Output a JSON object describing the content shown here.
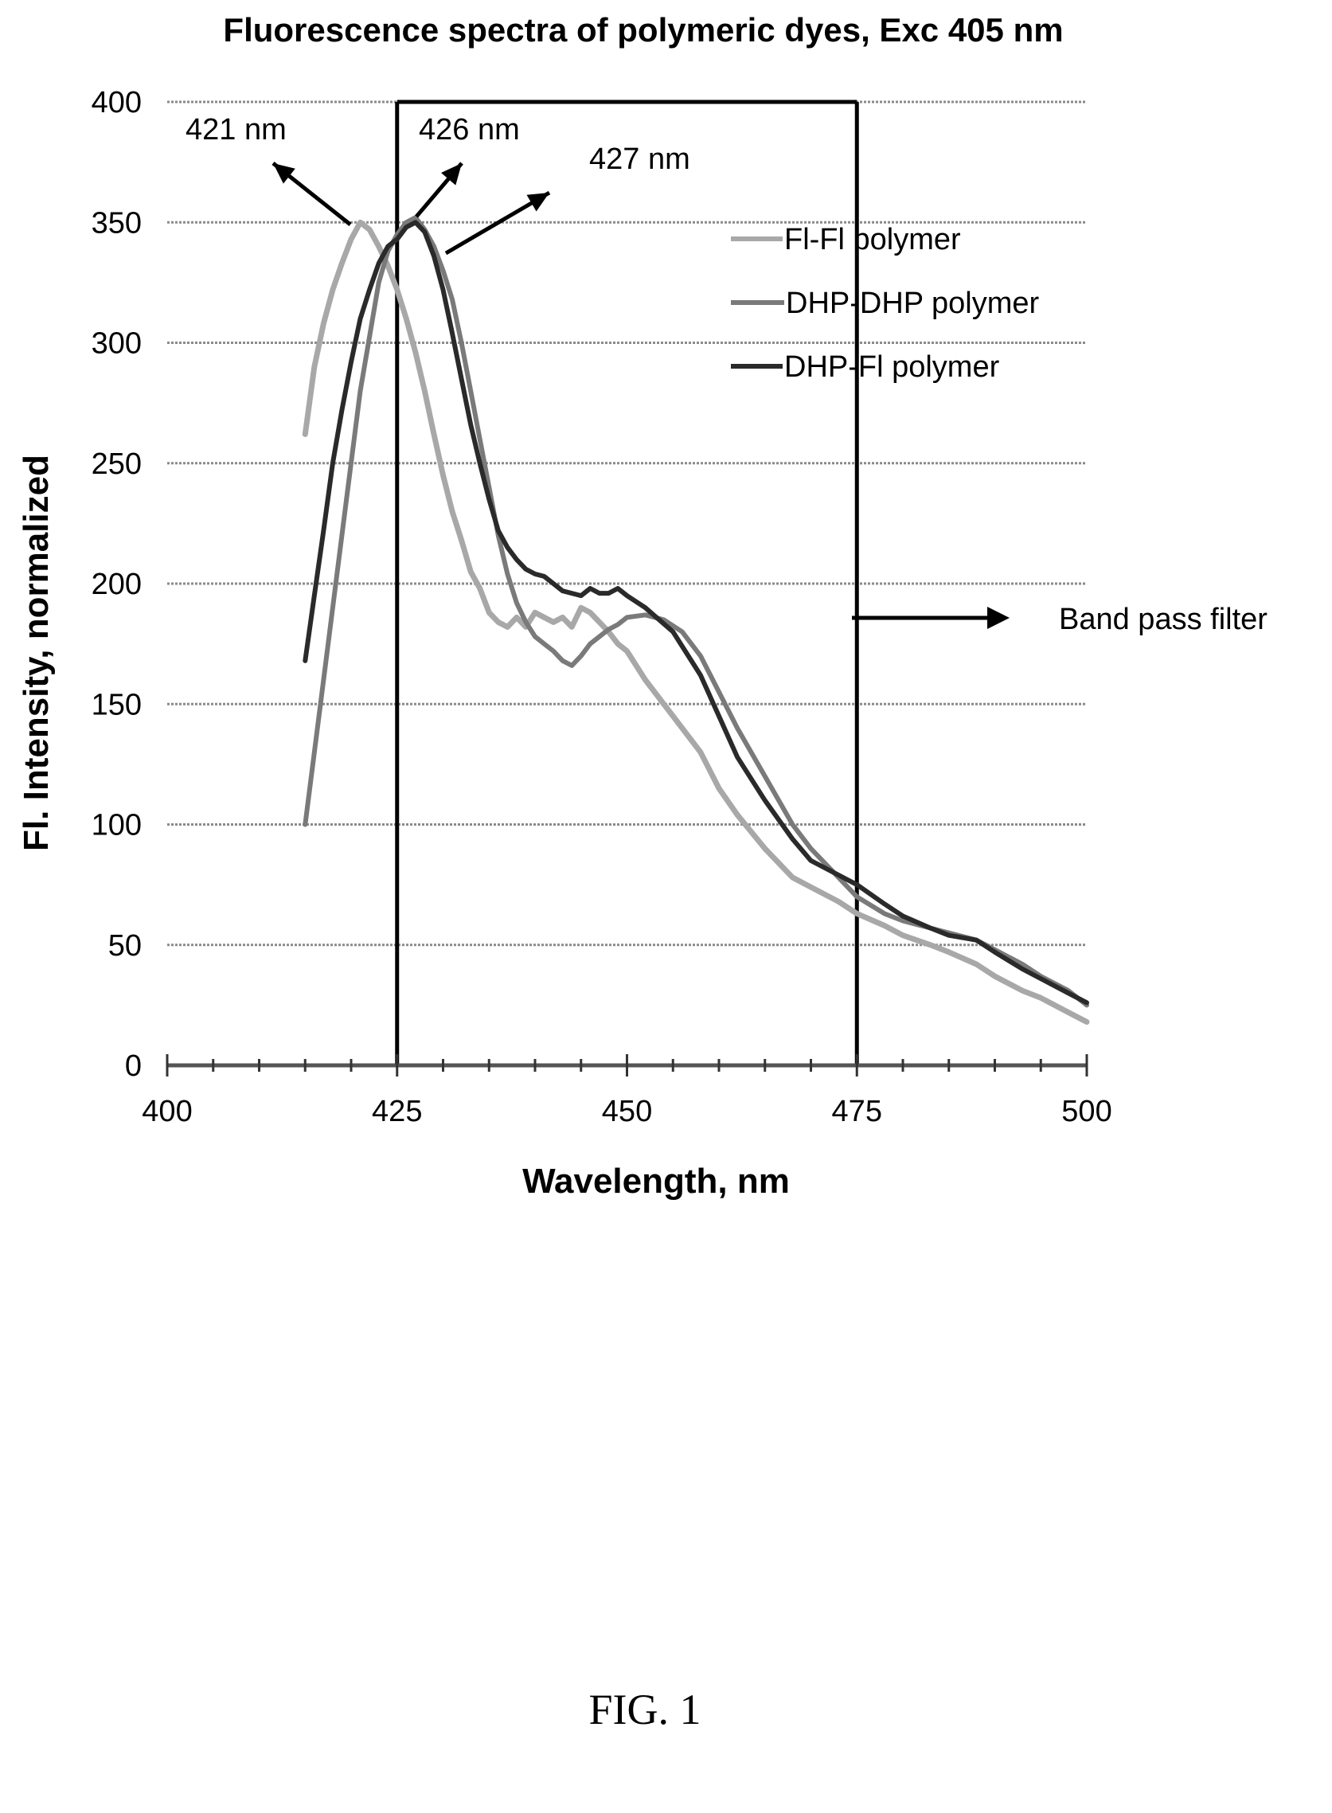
{
  "chart_data": {
    "type": "line",
    "title": "Fluorescence spectra of polymeric dyes, Exc 405 nm",
    "xlabel": "Wavelength, nm",
    "ylabel": "Fl. Intensity, normalized",
    "xlim": [
      400,
      500
    ],
    "ylim": [
      0,
      400
    ],
    "xticks": [
      400,
      425,
      450,
      475,
      500
    ],
    "yticks": [
      0,
      50,
      100,
      150,
      200,
      250,
      300,
      350,
      400
    ],
    "grid": true,
    "legend": "top-right",
    "series": [
      {
        "name": "Fl-Fl polymer",
        "color": "#a8a8a8",
        "x": [
          415,
          416,
          417,
          418,
          419,
          420,
          421,
          422,
          423,
          424,
          425,
          426,
          427,
          428,
          429,
          430,
          431,
          432,
          433,
          434,
          435,
          436,
          437,
          438,
          439,
          440,
          441,
          442,
          443,
          444,
          445,
          446,
          447,
          448,
          449,
          450,
          452,
          455,
          458,
          460,
          462,
          465,
          468,
          470,
          473,
          475,
          478,
          480,
          483,
          485,
          488,
          490,
          493,
          495,
          498,
          500
        ],
        "y": [
          262,
          290,
          308,
          322,
          333,
          343,
          350,
          347,
          340,
          332,
          322,
          310,
          296,
          280,
          262,
          245,
          230,
          218,
          205,
          198,
          188,
          184,
          182,
          186,
          182,
          188,
          186,
          184,
          186,
          182,
          190,
          188,
          184,
          180,
          175,
          172,
          160,
          145,
          130,
          115,
          104,
          90,
          78,
          74,
          68,
          63,
          58,
          54,
          50,
          47,
          42,
          37,
          31,
          28,
          22,
          18
        ]
      },
      {
        "name": "DHP-DHP polymer",
        "color": "#7a7a7a",
        "x": [
          415,
          417,
          419,
          421,
          423,
          424,
          425,
          426,
          427,
          428,
          429,
          430,
          431,
          432,
          433,
          434,
          435,
          436,
          437,
          438,
          439,
          440,
          441,
          442,
          443,
          444,
          445,
          446,
          447,
          448,
          449,
          450,
          452,
          454,
          456,
          458,
          460,
          462,
          465,
          468,
          470,
          473,
          475,
          478,
          480,
          483,
          485,
          488,
          490,
          493,
          495,
          498,
          500
        ],
        "y": [
          100,
          160,
          220,
          280,
          325,
          338,
          345,
          350,
          352,
          347,
          340,
          330,
          318,
          300,
          280,
          260,
          240,
          220,
          204,
          192,
          184,
          178,
          175,
          172,
          168,
          166,
          170,
          175,
          178,
          181,
          183,
          186,
          187,
          185,
          180,
          170,
          155,
          140,
          120,
          100,
          90,
          78,
          70,
          63,
          60,
          57,
          55,
          52,
          48,
          42,
          37,
          31,
          25
        ]
      },
      {
        "name": "DHP-Fl polymer",
        "color": "#2a2a2a",
        "x": [
          415,
          416,
          417,
          418,
          419,
          420,
          421,
          422,
          423,
          424,
          425,
          426,
          427,
          428,
          429,
          430,
          431,
          432,
          433,
          434,
          435,
          436,
          437,
          438,
          439,
          440,
          441,
          442,
          443,
          444,
          445,
          446,
          447,
          448,
          449,
          450,
          452,
          455,
          458,
          460,
          462,
          465,
          468,
          470,
          473,
          475,
          478,
          480,
          483,
          485,
          488,
          490,
          493,
          495,
          498,
          500
        ],
        "y": [
          168,
          195,
          222,
          250,
          272,
          292,
          310,
          322,
          333,
          340,
          343,
          348,
          350,
          346,
          336,
          322,
          304,
          285,
          266,
          250,
          235,
          222,
          215,
          210,
          206,
          204,
          203,
          200,
          197,
          196,
          195,
          198,
          196,
          196,
          198,
          195,
          190,
          180,
          162,
          145,
          128,
          110,
          94,
          85,
          79,
          75,
          67,
          62,
          57,
          54,
          52,
          47,
          40,
          36,
          30,
          26
        ]
      }
    ],
    "annotations": [
      {
        "text": "421 nm",
        "x": 421,
        "y": 350
      },
      {
        "text": "426 nm",
        "x": 426,
        "y": 350
      },
      {
        "text": "427 nm",
        "x": 427,
        "y": 350
      }
    ],
    "band_pass_filter": {
      "label": "Band pass filter",
      "x_range": [
        425,
        475
      ]
    }
  },
  "figure_label": "FIG. 1"
}
